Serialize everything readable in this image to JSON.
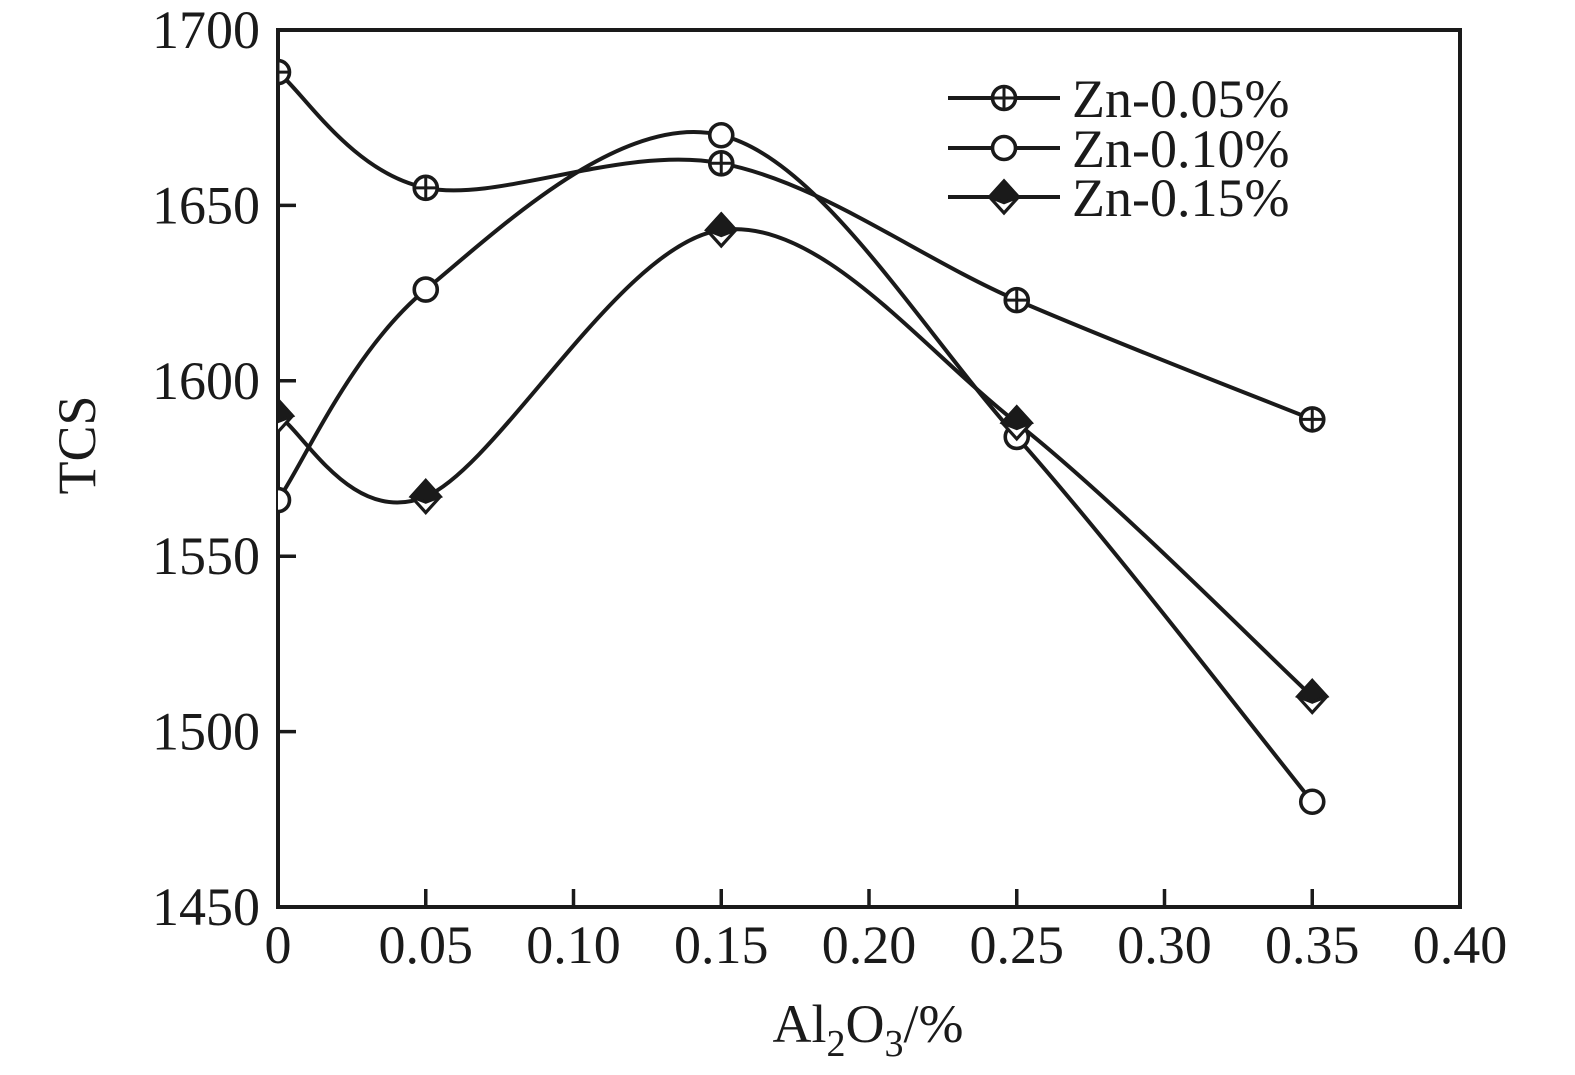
{
  "figure": {
    "background": "#ffffff",
    "ink_color": "#1a1a1a"
  },
  "chart_data": {
    "type": "line",
    "title": "",
    "xlabel_text": "Al2O3/%",
    "xlabel_parts": [
      {
        "t": "Al"
      },
      {
        "t": "2"
      },
      {
        "t": "O"
      },
      {
        "t": "3"
      },
      {
        "t": "/%"
      }
    ],
    "ylabel": "TCS",
    "xlim": [
      0,
      0.4
    ],
    "ylim": [
      1450,
      1700
    ],
    "x_ticks": [
      0,
      0.05,
      0.1,
      0.15,
      0.2,
      0.25,
      0.3,
      0.35,
      0.4
    ],
    "x_tick_labels": [
      "0",
      "0.05",
      "0.10",
      "0.15",
      "0.20",
      "0.25",
      "0.30",
      "0.35",
      "0.40"
    ],
    "y_ticks": [
      1450,
      1500,
      1550,
      1600,
      1650,
      1700
    ],
    "y_tick_labels": [
      "1450",
      "1500",
      "1550",
      "1600",
      "1650",
      "1700"
    ],
    "grid": false,
    "legend_position": "top-right-inside",
    "x": [
      0,
      0.05,
      0.15,
      0.25,
      0.35
    ],
    "series": [
      {
        "name": "Zn-0.05%",
        "marker": "circle-plus",
        "values": [
          1688,
          1655,
          1662,
          1623,
          1589
        ]
      },
      {
        "name": "Zn-0.10%",
        "marker": "circle-open",
        "values": [
          1566,
          1626,
          1670,
          1584,
          1480
        ]
      },
      {
        "name": "Zn-0.15%",
        "marker": "diamond-half-filled",
        "values": [
          1590,
          1567,
          1643,
          1588,
          1510
        ]
      }
    ]
  }
}
